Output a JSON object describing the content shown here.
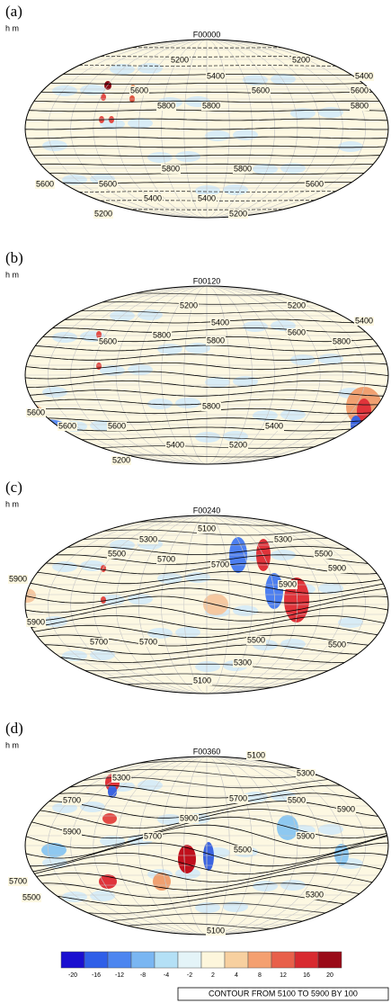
{
  "panels": [
    {
      "label": "(a)",
      "units": "h m",
      "time": "F00000",
      "contour_labels": [
        "5200",
        "5200",
        "5400",
        "5400",
        "5600",
        "5600",
        "5600",
        "5800",
        "5800",
        "5800",
        "5800",
        "5800",
        "5600",
        "5600",
        "5600",
        "5400",
        "5400",
        "5200",
        "5200"
      ]
    },
    {
      "label": "(b)",
      "units": "h m",
      "time": "F00120",
      "contour_labels": [
        "5200",
        "5200",
        "5400",
        "5400",
        "5600",
        "5600",
        "5800",
        "5800",
        "5800",
        "5800",
        "5600",
        "5600",
        "5600",
        "5400",
        "5400",
        "5200",
        "5200"
      ]
    },
    {
      "label": "(c)",
      "units": "h m",
      "time": "F00240",
      "contour_labels": [
        "5100",
        "5300",
        "5300",
        "5500",
        "5500",
        "5700",
        "5700",
        "5900",
        "5900",
        "5900",
        "5900",
        "5700",
        "5700",
        "5500",
        "5500",
        "5300",
        "5100"
      ]
    },
    {
      "label": "(d)",
      "units": "h m",
      "time": "F00360",
      "contour_labels": [
        "5100",
        "5300",
        "5300",
        "5500",
        "5700",
        "5700",
        "5900",
        "5900",
        "5900",
        "5900",
        "5700",
        "5700",
        "5500",
        "5500",
        "5300",
        "5100"
      ]
    }
  ],
  "colorbar": {
    "labels": [
      "-20",
      "-16",
      "-12",
      "-8",
      "-4",
      "-2",
      "2",
      "4",
      "8",
      "12",
      "16",
      "20"
    ]
  },
  "footer": "CONTOUR FROM 5100 TO 5900 BY 100"
}
